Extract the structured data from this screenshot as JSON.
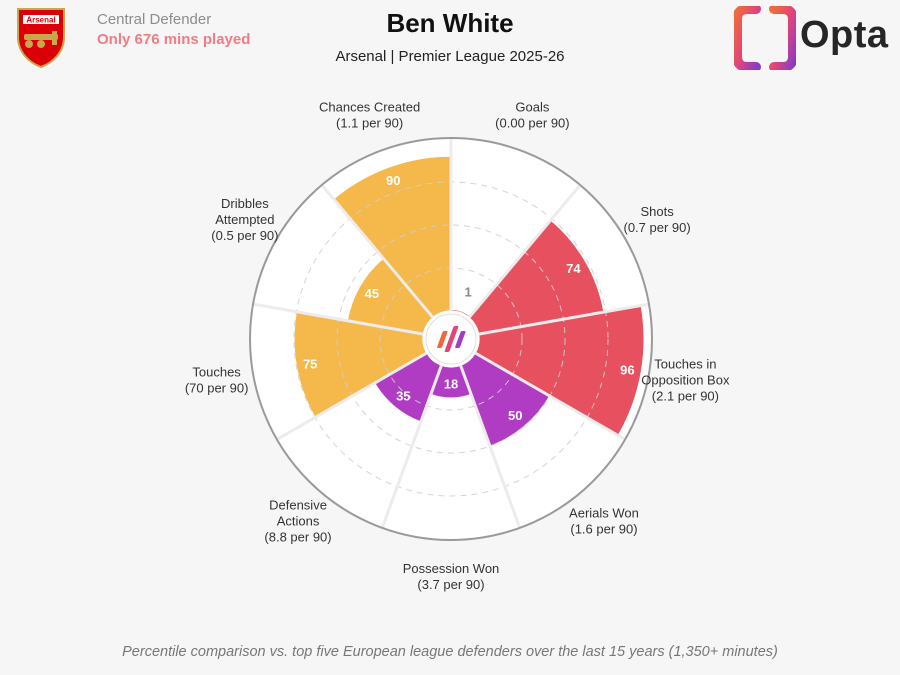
{
  "header": {
    "club_badge_text": "Arsenal",
    "position": "Central Defender",
    "minutes_note": "Only 676 mins played",
    "player_name": "Ben White",
    "team_season": "Arsenal | Premier League 2025-26",
    "brand": "Opta"
  },
  "chart_data": {
    "type": "polar-bar",
    "scale": [
      0,
      100
    ],
    "grid": true,
    "categories": [
      {
        "label": "Goals",
        "rate": "(0.00 per 90)",
        "value": 1,
        "group": "attacking"
      },
      {
        "label": "Shots",
        "rate": "(0.7 per 90)",
        "value": 74,
        "group": "attacking"
      },
      {
        "label": "Touches in\nOpposition Box",
        "rate": "(2.1 per 90)",
        "value": 96,
        "group": "attacking"
      },
      {
        "label": "Aerials Won",
        "rate": "(1.6 per 90)",
        "value": 50,
        "group": "defending"
      },
      {
        "label": "Possession Won",
        "rate": "(3.7 per 90)",
        "value": 18,
        "group": "defending"
      },
      {
        "label": "Defensive\nActions",
        "rate": "(8.8 per 90)",
        "value": 35,
        "group": "defending"
      },
      {
        "label": "Touches",
        "rate": "(70 per 90)",
        "value": 75,
        "group": "possession"
      },
      {
        "label": "Dribbles\nAttempted",
        "rate": "(0.5 per 90)",
        "value": 45,
        "group": "possession"
      },
      {
        "label": "Chances Created",
        "rate": "(1.1 per 90)",
        "value": 90,
        "group": "possession"
      }
    ],
    "colors": {
      "attacking": "#e6505f",
      "defending": "#b03cc4",
      "possession": "#f5b84a",
      "grid": "#cfcfcf",
      "outer_ring": "#9a9a9a"
    }
  },
  "footnote": "Percentile comparison vs. top five European league defenders over the last 15 years (1,350+ minutes)"
}
